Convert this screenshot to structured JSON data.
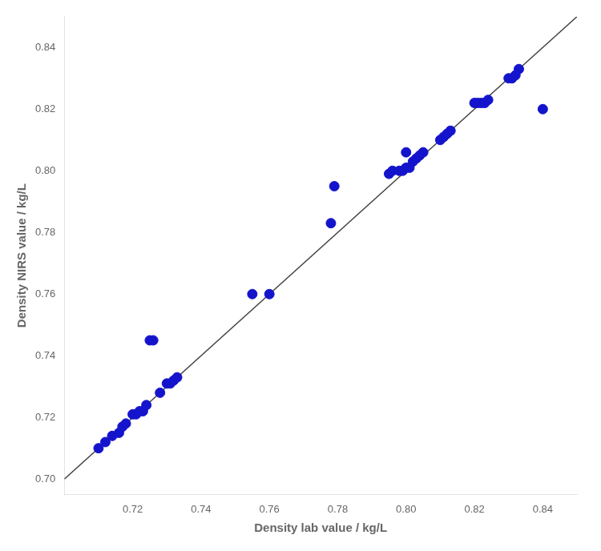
{
  "chart_data": {
    "type": "scatter",
    "x_label": "Density lab value / kg/L",
    "y_label": "Density NIRS value / kg/L",
    "xlim": [
      0.7,
      0.85
    ],
    "ylim": [
      0.695,
      0.85
    ],
    "xticks": [
      0.72,
      0.74,
      0.76,
      0.78,
      {
        "value": 0.8,
        "label": "0.80"
      },
      0.82,
      0.84
    ],
    "yticks": [
      {
        "value": 0.7,
        "label": "0.70"
      },
      0.72,
      0.74,
      0.76,
      0.78,
      {
        "value": 0.8,
        "label": "0.80"
      },
      0.82,
      0.84
    ],
    "grid": false,
    "series": [
      {
        "type": "line",
        "color": "#444444",
        "marker": "none",
        "x": [
          0.7,
          0.85
        ],
        "values": [
          0.7,
          0.85
        ]
      },
      {
        "type": "scatter",
        "color": "#1414CC",
        "marker": "circle",
        "x": [
          0.71,
          0.712,
          0.714,
          0.716,
          0.717,
          0.718,
          0.72,
          0.721,
          0.722,
          0.723,
          0.724,
          0.725,
          0.726,
          0.728,
          0.73,
          0.731,
          0.732,
          0.733,
          0.755,
          0.76,
          0.778,
          0.779,
          0.795,
          0.796,
          0.798,
          0.799,
          0.8,
          0.8,
          0.801,
          0.802,
          0.803,
          0.804,
          0.805,
          0.81,
          0.811,
          0.812,
          0.813,
          0.82,
          0.821,
          0.822,
          0.823,
          0.824,
          0.83,
          0.831,
          0.832,
          0.833,
          0.84
        ],
        "values": [
          0.71,
          0.712,
          0.714,
          0.715,
          0.717,
          0.718,
          0.721,
          0.721,
          0.722,
          0.722,
          0.724,
          0.745,
          0.745,
          0.728,
          0.731,
          0.731,
          0.732,
          0.733,
          0.76,
          0.76,
          0.783,
          0.795,
          0.799,
          0.8,
          0.8,
          0.8,
          0.801,
          0.806,
          0.801,
          0.803,
          0.804,
          0.805,
          0.806,
          0.81,
          0.811,
          0.812,
          0.813,
          0.822,
          0.822,
          0.822,
          0.822,
          0.823,
          0.83,
          0.83,
          0.831,
          0.833,
          0.82
        ]
      }
    ]
  }
}
